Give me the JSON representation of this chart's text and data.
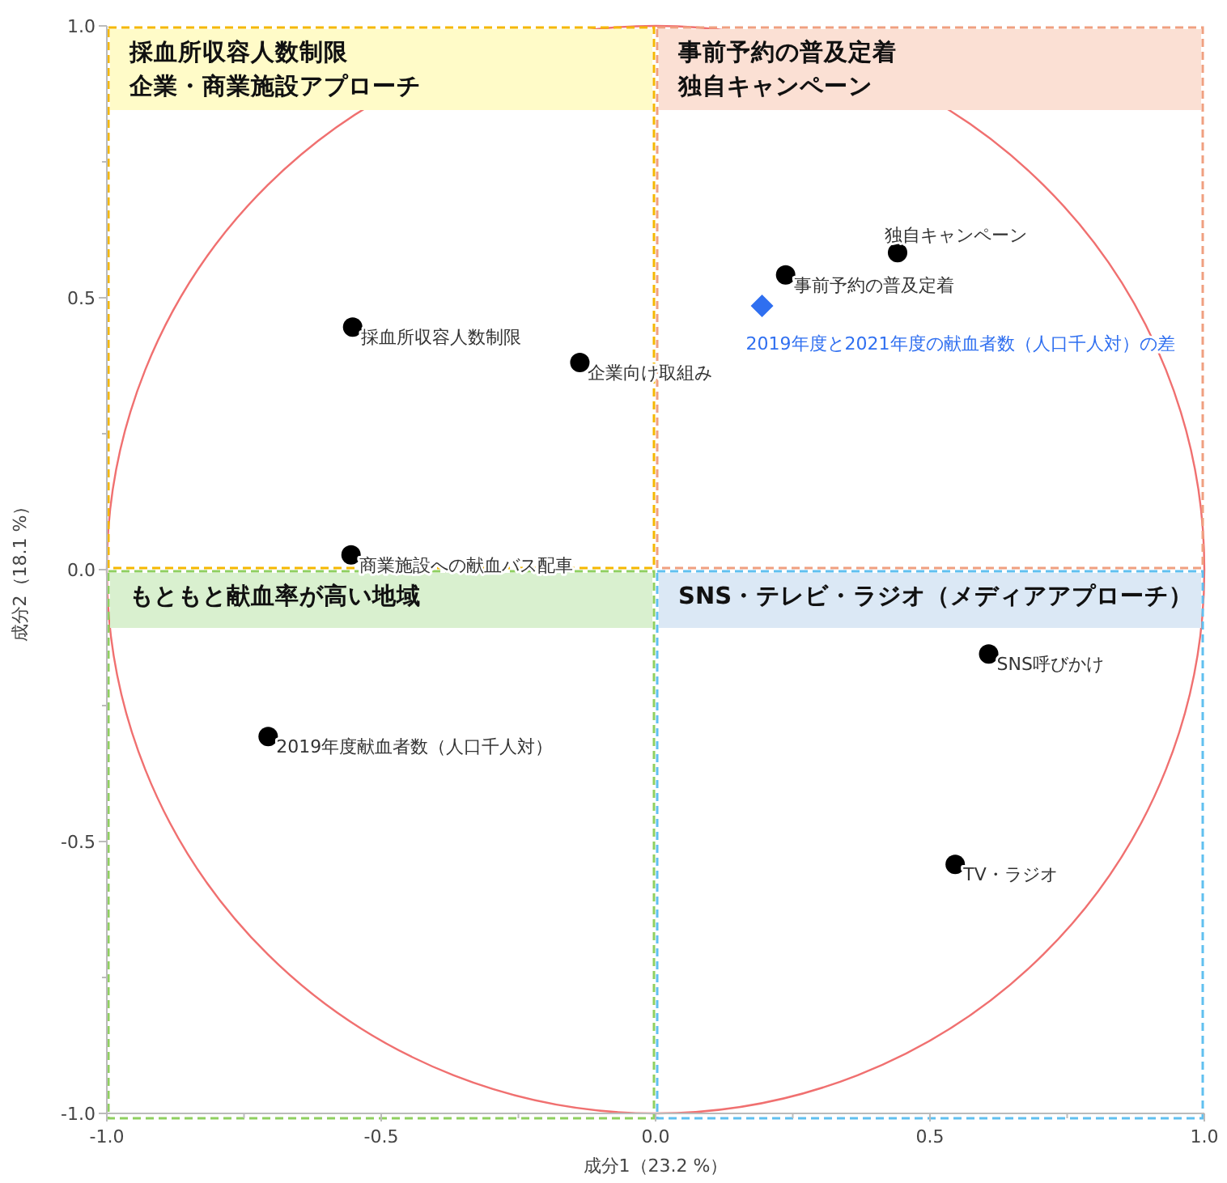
{
  "chart_data": {
    "type": "scatter",
    "xlabel": "成分1（23.2 %）",
    "ylabel": "成分2（18.1 %）",
    "xlim": [
      -1,
      1
    ],
    "ylim": [
      -1,
      1
    ],
    "xticks": [
      {
        "value": -1,
        "label": "-1.0"
      },
      {
        "value": -0.75,
        "label": null
      },
      {
        "value": -0.5,
        "label": "-0.5"
      },
      {
        "value": -0.25,
        "label": null
      },
      {
        "value": 0,
        "label": "0.0"
      },
      {
        "value": 0.25,
        "label": null
      },
      {
        "value": 0.5,
        "label": "0.5"
      },
      {
        "value": 0.75,
        "label": null
      },
      {
        "value": 1,
        "label": "1.0"
      }
    ],
    "yticks": [
      {
        "value": -1,
        "label": "-1.0"
      },
      {
        "value": -0.75,
        "label": null
      },
      {
        "value": -0.5,
        "label": "-0.5"
      },
      {
        "value": -0.25,
        "label": null
      },
      {
        "value": 0,
        "label": "0.0"
      },
      {
        "value": 0.25,
        "label": null
      },
      {
        "value": 0.5,
        "label": "0.5"
      },
      {
        "value": 0.75,
        "label": null
      },
      {
        "value": 1,
        "label": "1.0"
      }
    ],
    "grid": false,
    "series": [
      {
        "name": "採血所収容人数制限",
        "color": "#000000",
        "marker": "circle",
        "x": [
          -0.552
        ],
        "values": [
          0.446
        ]
      },
      {
        "name": "企業向け取組み",
        "color": "#000000",
        "marker": "circle",
        "x": [
          -0.138
        ],
        "values": [
          0.381
        ]
      },
      {
        "name": "商業施設への献血バス配車",
        "color": "#000000",
        "marker": "circle",
        "x": [
          -0.555
        ],
        "values": [
          0.027
        ]
      },
      {
        "name": "2019年度献血者数（人口千人対）",
        "color": "#000000",
        "marker": "circle",
        "x": [
          -0.706
        ],
        "values": [
          -0.307
        ]
      },
      {
        "name": "独自キャンペーン",
        "color": "#000000",
        "marker": "circle",
        "x": [
          0.441
        ],
        "values": [
          0.583
        ]
      },
      {
        "name": "事前予約の普及定着",
        "color": "#000000",
        "marker": "circle",
        "x": [
          0.237
        ],
        "values": [
          0.542
        ]
      },
      {
        "name": "2019年度と2021年度の献血者数（人口千人対）の差",
        "color": "#2f6ff0",
        "marker": "diamond",
        "x": [
          0.194
        ],
        "values": [
          0.485
        ]
      },
      {
        "name": "SNS呼びかけ",
        "color": "#000000",
        "marker": "circle",
        "x": [
          0.607
        ],
        "values": [
          -0.155
        ]
      },
      {
        "name": "TV・ラジオ",
        "color": "#000000",
        "marker": "circle",
        "x": [
          0.546
        ],
        "values": [
          -0.542
        ]
      }
    ],
    "annotations": [
      "採血所収容人数制限",
      "企業・商業施設アプローチ",
      "事前予約の普及定着",
      "独自キャンペーン",
      "もともと献血率が高い地域",
      "SNS・テレビ・ラジオ（メディアアプローチ）"
    ]
  }
}
